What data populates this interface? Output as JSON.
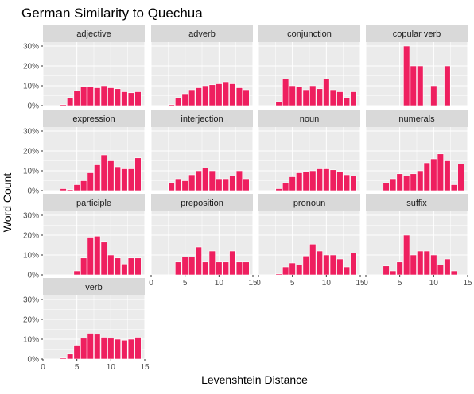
{
  "chart_data": {
    "type": "bar",
    "title": "German Similarity to Quechua",
    "xlabel": "Levenshtein Distance",
    "ylabel": "Word Count",
    "x": [
      1,
      2,
      3,
      4,
      5,
      6,
      7,
      8,
      9,
      10,
      11,
      12,
      13,
      14
    ],
    "xlim": [
      0,
      15
    ],
    "ylim": [
      0,
      0.32
    ],
    "x_ticks": [
      0,
      5,
      10,
      15
    ],
    "x_tick_labels": [
      "0",
      "5",
      "10",
      "15"
    ],
    "y_ticks": [
      0,
      0.1,
      0.2,
      0.3
    ],
    "y_tick_labels": [
      "0%",
      "10%",
      "20%",
      "30%"
    ],
    "bar_color": "#EE1F5F",
    "panel_bg": "#EBEBEB",
    "strip_bg": "#D9D9D9",
    "grid": true,
    "panels": [
      {
        "name": "adjective",
        "values": [
          0,
          0,
          0.005,
          0.04,
          0.075,
          0.095,
          0.095,
          0.09,
          0.1,
          0.09,
          0.085,
          0.07,
          0.065,
          0.07
        ]
      },
      {
        "name": "adverb",
        "values": [
          0,
          0,
          0.005,
          0.04,
          0.06,
          0.08,
          0.09,
          0.1,
          0.105,
          0.11,
          0.12,
          0.11,
          0.09,
          0.08
        ]
      },
      {
        "name": "conjunction",
        "values": [
          0,
          0,
          0.02,
          0.135,
          0.1,
          0.095,
          0.08,
          0.1,
          0.085,
          0.135,
          0.08,
          0.07,
          0.04,
          0.07
        ]
      },
      {
        "name": "copular verb",
        "values": [
          0,
          0,
          0,
          0,
          0,
          0.3,
          0.2,
          0.2,
          0,
          0.1,
          0,
          0.2,
          0,
          0
        ]
      },
      {
        "name": "expression",
        "values": [
          0,
          0,
          0.01,
          0.005,
          0.03,
          0.05,
          0.09,
          0.13,
          0.18,
          0.15,
          0.12,
          0.11,
          0.11,
          0.165
        ]
      },
      {
        "name": "interjection",
        "values": [
          0,
          0,
          0.04,
          0.06,
          0.05,
          0.08,
          0.1,
          0.115,
          0.1,
          0.06,
          0.06,
          0.075,
          0.1,
          0.06
        ]
      },
      {
        "name": "noun",
        "values": [
          0,
          0,
          0.01,
          0.04,
          0.07,
          0.09,
          0.095,
          0.1,
          0.11,
          0.11,
          0.105,
          0.095,
          0.08,
          0.075
        ]
      },
      {
        "name": "numerals",
        "values": [
          0,
          0,
          0.04,
          0.06,
          0.085,
          0.075,
          0.085,
          0.1,
          0.14,
          0.16,
          0.185,
          0.15,
          0.03,
          0.135
        ]
      },
      {
        "name": "participle",
        "values": [
          0,
          0,
          0,
          0,
          0.02,
          0.085,
          0.19,
          0.195,
          0.165,
          0.1,
          0.085,
          0.055,
          0.085,
          0.085
        ]
      },
      {
        "name": "preposition",
        "values": [
          0,
          0,
          0,
          0.065,
          0.09,
          0.09,
          0.14,
          0.065,
          0.12,
          0.065,
          0.065,
          0.12,
          0.065,
          0.065
        ]
      },
      {
        "name": "pronoun",
        "values": [
          0,
          0,
          0.005,
          0.04,
          0.06,
          0.05,
          0.095,
          0.155,
          0.12,
          0.1,
          0.1,
          0.08,
          0.04,
          0.11
        ]
      },
      {
        "name": "suffix",
        "values": [
          0,
          0,
          0.045,
          0.02,
          0.065,
          0.2,
          0.1,
          0.12,
          0.12,
          0.1,
          0.05,
          0.08,
          0.02,
          0
        ]
      },
      {
        "name": "verb",
        "values": [
          0,
          0,
          0.005,
          0.025,
          0.07,
          0.105,
          0.13,
          0.125,
          0.11,
          0.105,
          0.1,
          0.095,
          0.1,
          0.11
        ]
      }
    ]
  }
}
